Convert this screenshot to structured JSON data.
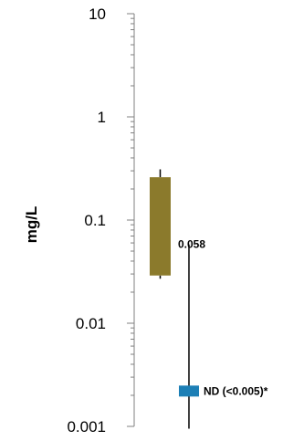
{
  "chart_data": {
    "type": "boxplot",
    "ylabel": "mg/L",
    "yscale": "log",
    "ylim": [
      0.001,
      10
    ],
    "yticks": [
      {
        "value": 10,
        "label": "10"
      },
      {
        "value": 1,
        "label": "1"
      },
      {
        "value": 0.1,
        "label": "0.1"
      },
      {
        "value": 0.01,
        "label": "0.01"
      },
      {
        "value": 0.001,
        "label": "0.001"
      }
    ],
    "grid": false,
    "box": {
      "q1": 0.029,
      "q3": 0.26,
      "whisker_low": 0.027,
      "whisker_high": 0.31,
      "color": "#8b7a2c"
    },
    "range_line": {
      "low": 0.00095,
      "high": 0.058,
      "color": "#000000",
      "label": "0.058"
    },
    "marker": {
      "value": 0.0022,
      "color": "#1c7fb6",
      "label": "ND (<0.005)*"
    }
  }
}
